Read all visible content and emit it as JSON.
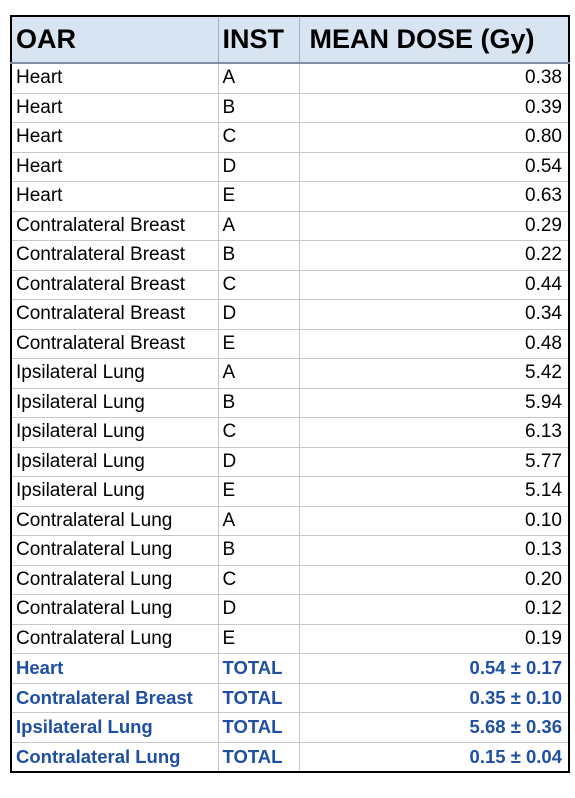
{
  "headers": {
    "oar": "OAR",
    "inst": "INST",
    "mean_dose": "MEAN DOSE (Gy)"
  },
  "rows": [
    {
      "oar": "Heart",
      "inst": "A",
      "dose": "0.38"
    },
    {
      "oar": "Heart",
      "inst": "B",
      "dose": "0.39"
    },
    {
      "oar": "Heart",
      "inst": "C",
      "dose": "0.80"
    },
    {
      "oar": "Heart",
      "inst": "D",
      "dose": "0.54"
    },
    {
      "oar": "Heart",
      "inst": "E",
      "dose": "0.63"
    },
    {
      "oar": "Contralateral Breast",
      "inst": "A",
      "dose": "0.29"
    },
    {
      "oar": "Contralateral Breast",
      "inst": "B",
      "dose": "0.22"
    },
    {
      "oar": "Contralateral Breast",
      "inst": "C",
      "dose": "0.44"
    },
    {
      "oar": "Contralateral Breast",
      "inst": "D",
      "dose": "0.34"
    },
    {
      "oar": "Contralateral Breast",
      "inst": "E",
      "dose": "0.48"
    },
    {
      "oar": "Ipsilateral Lung",
      "inst": "A",
      "dose": "5.42"
    },
    {
      "oar": "Ipsilateral Lung",
      "inst": "B",
      "dose": "5.94"
    },
    {
      "oar": "Ipsilateral Lung",
      "inst": "C",
      "dose": "6.13"
    },
    {
      "oar": "Ipsilateral Lung",
      "inst": "D",
      "dose": "5.77"
    },
    {
      "oar": "Ipsilateral Lung",
      "inst": "E",
      "dose": "5.14"
    },
    {
      "oar": "Contralateral Lung",
      "inst": "A",
      "dose": "0.10"
    },
    {
      "oar": "Contralateral Lung",
      "inst": "B",
      "dose": "0.13"
    },
    {
      "oar": "Contralateral Lung",
      "inst": "C",
      "dose": "0.20"
    },
    {
      "oar": "Contralateral Lung",
      "inst": "D",
      "dose": "0.12"
    },
    {
      "oar": "Contralateral Lung",
      "inst": "E",
      "dose": "0.19"
    }
  ],
  "totals": [
    {
      "oar": "Heart",
      "inst": "TOTAL",
      "dose": "0.54 ± 0.17"
    },
    {
      "oar": "Contralateral Breast",
      "inst": "TOTAL",
      "dose": "0.35 ± 0.10"
    },
    {
      "oar": "Ipsilateral Lung",
      "inst": "TOTAL",
      "dose": "5.68 ± 0.36"
    },
    {
      "oar": "Contralateral Lung",
      "inst": "TOTAL",
      "dose": "0.15 ± 0.04"
    }
  ],
  "colors": {
    "header_bg": "#d8e4f1",
    "total_text": "#1f4fa3",
    "grid": "#c7c7c7"
  }
}
